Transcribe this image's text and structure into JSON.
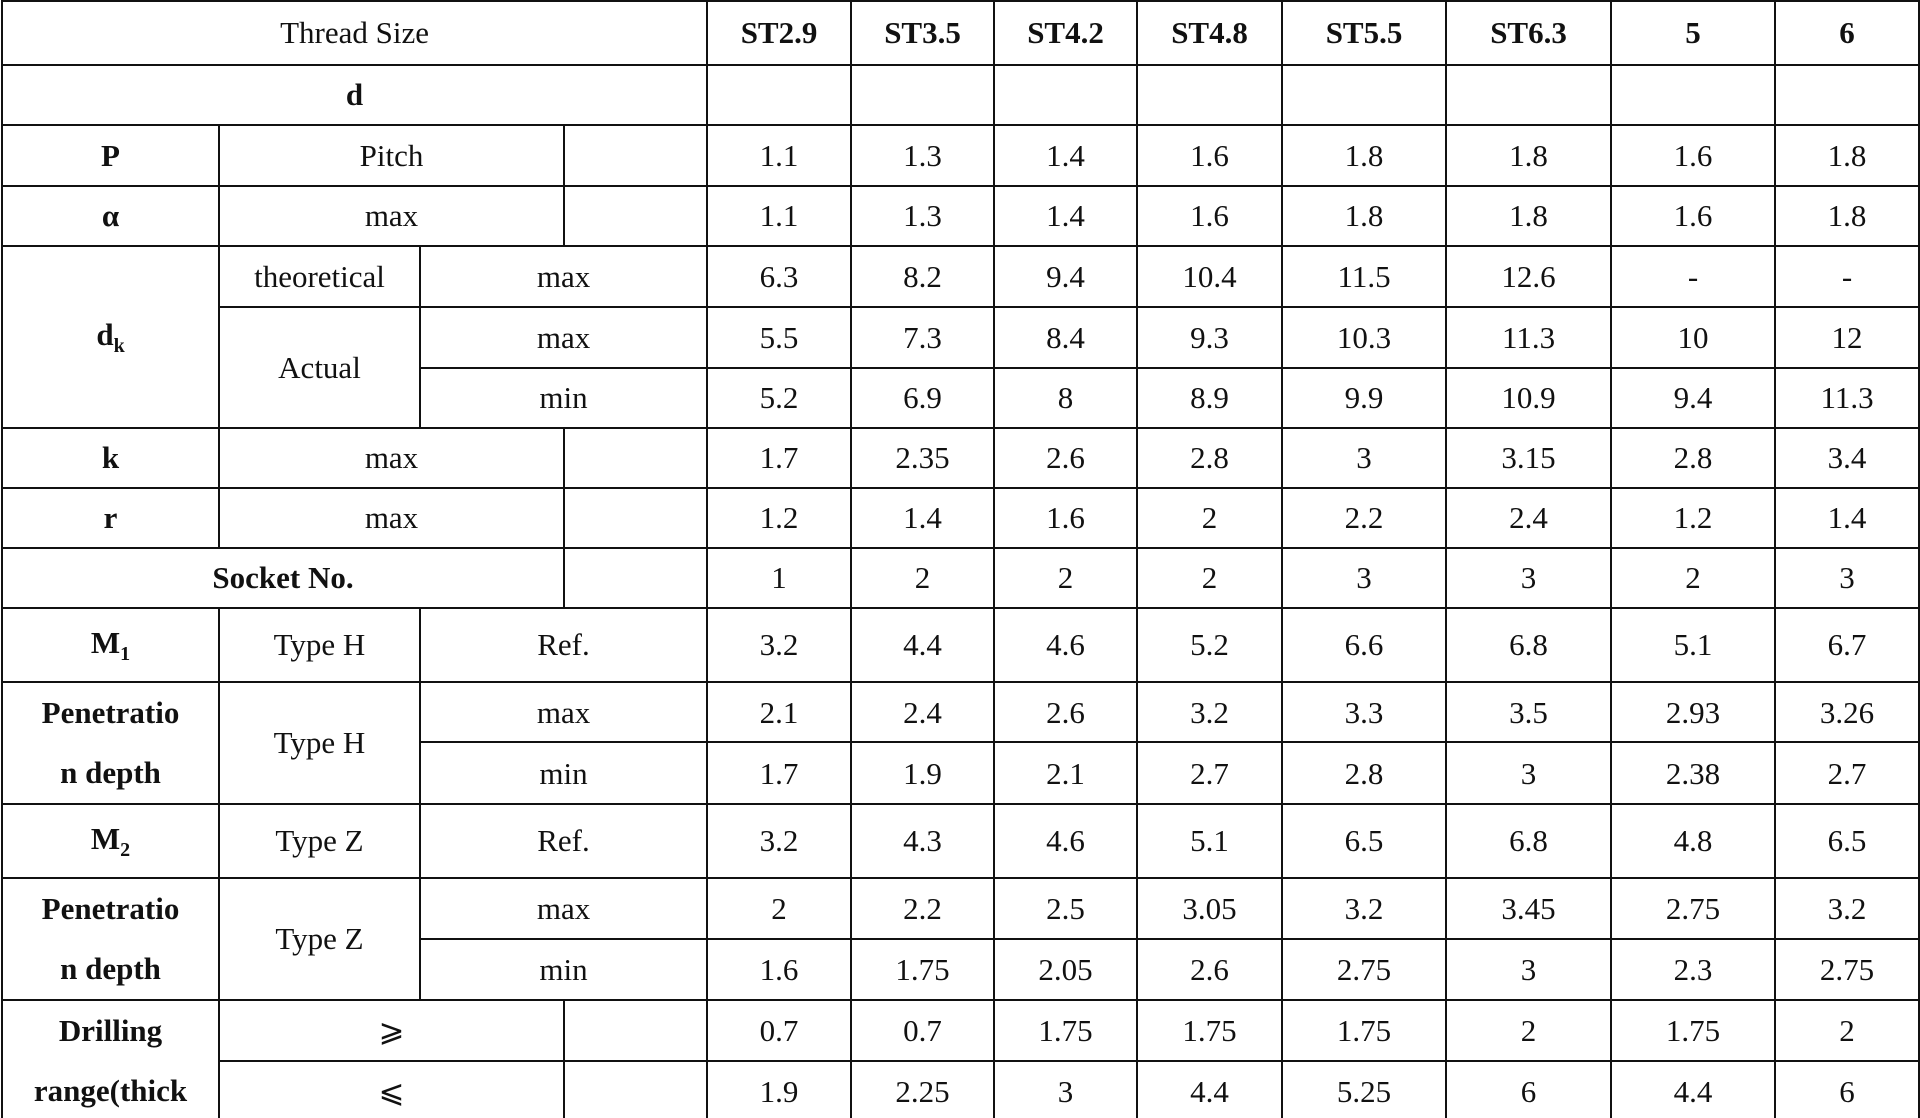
{
  "table": {
    "header": {
      "label": "Thread Size",
      "columns": [
        "ST2.9",
        "ST3.5",
        "ST4.2",
        "ST4.8",
        "ST5.5",
        "ST6.3",
        "5",
        "6"
      ]
    },
    "rows": [
      {
        "label": "d"
      },
      {
        "label": "P",
        "param": "Pitch",
        "values": [
          1.1,
          1.3,
          1.4,
          1.6,
          1.8,
          1.8,
          1.6,
          1.8
        ]
      },
      {
        "label": "α",
        "param": "max",
        "values": [
          1.1,
          1.3,
          1.4,
          1.6,
          1.8,
          1.8,
          1.6,
          1.8
        ]
      },
      {
        "label": {
          "main": "d",
          "sub": "k"
        },
        "group": "theoretical",
        "limit": "max",
        "values": [
          6.3,
          8.2,
          9.4,
          10.4,
          11.5,
          12.6,
          "-",
          "-"
        ]
      },
      {
        "group": "Actual",
        "limit": "max",
        "values": [
          5.5,
          7.3,
          8.4,
          9.3,
          10.3,
          11.3,
          10,
          12
        ]
      },
      {
        "limit": "min",
        "values": [
          5.2,
          6.9,
          8,
          8.9,
          9.9,
          10.9,
          9.4,
          11.3
        ]
      },
      {
        "label": "k",
        "param": "max",
        "values": [
          1.7,
          2.35,
          2.6,
          2.8,
          3,
          3.15,
          2.8,
          3.4
        ]
      },
      {
        "label": "r",
        "param": "max",
        "values": [
          1.2,
          1.4,
          1.6,
          2,
          2.2,
          2.4,
          1.2,
          1.4
        ]
      },
      {
        "label": "Socket No.",
        "values": [
          1,
          2,
          2,
          2,
          3,
          3,
          2,
          3
        ]
      },
      {
        "label": {
          "main": "M",
          "sub": "1"
        },
        "group": "Type H",
        "limit": "Ref.",
        "values": [
          3.2,
          4.4,
          4.6,
          5.2,
          6.6,
          6.8,
          5.1,
          6.7
        ]
      },
      {
        "label": [
          "Penetratio",
          "n depth"
        ],
        "group": "Type H",
        "limit": "max",
        "values": [
          2.1,
          2.4,
          2.6,
          3.2,
          3.3,
          3.5,
          2.93,
          3.26
        ]
      },
      {
        "limit": "min",
        "values": [
          1.7,
          1.9,
          2.1,
          2.7,
          2.8,
          3,
          2.38,
          2.7
        ]
      },
      {
        "label": {
          "main": "M",
          "sub": "2"
        },
        "group": "Type Z",
        "limit": "Ref.",
        "values": [
          3.2,
          4.3,
          4.6,
          5.1,
          6.5,
          6.8,
          4.8,
          6.5
        ]
      },
      {
        "label": [
          "Penetratio",
          "n depth"
        ],
        "group": "Type Z",
        "limit": "max",
        "values": [
          2,
          2.2,
          2.5,
          3.05,
          3.2,
          3.45,
          2.75,
          3.2
        ]
      },
      {
        "limit": "min",
        "values": [
          1.6,
          1.75,
          2.05,
          2.6,
          2.75,
          3,
          2.3,
          2.75
        ]
      },
      {
        "label": [
          "Drilling",
          "range(thick"
        ],
        "param": "⩾",
        "values": [
          0.7,
          0.7,
          1.75,
          1.75,
          1.75,
          2,
          1.75,
          2
        ]
      },
      {
        "param": "⩽",
        "values": [
          1.9,
          2.25,
          3,
          4.4,
          5.25,
          6,
          4.4,
          6
        ]
      }
    ]
  }
}
